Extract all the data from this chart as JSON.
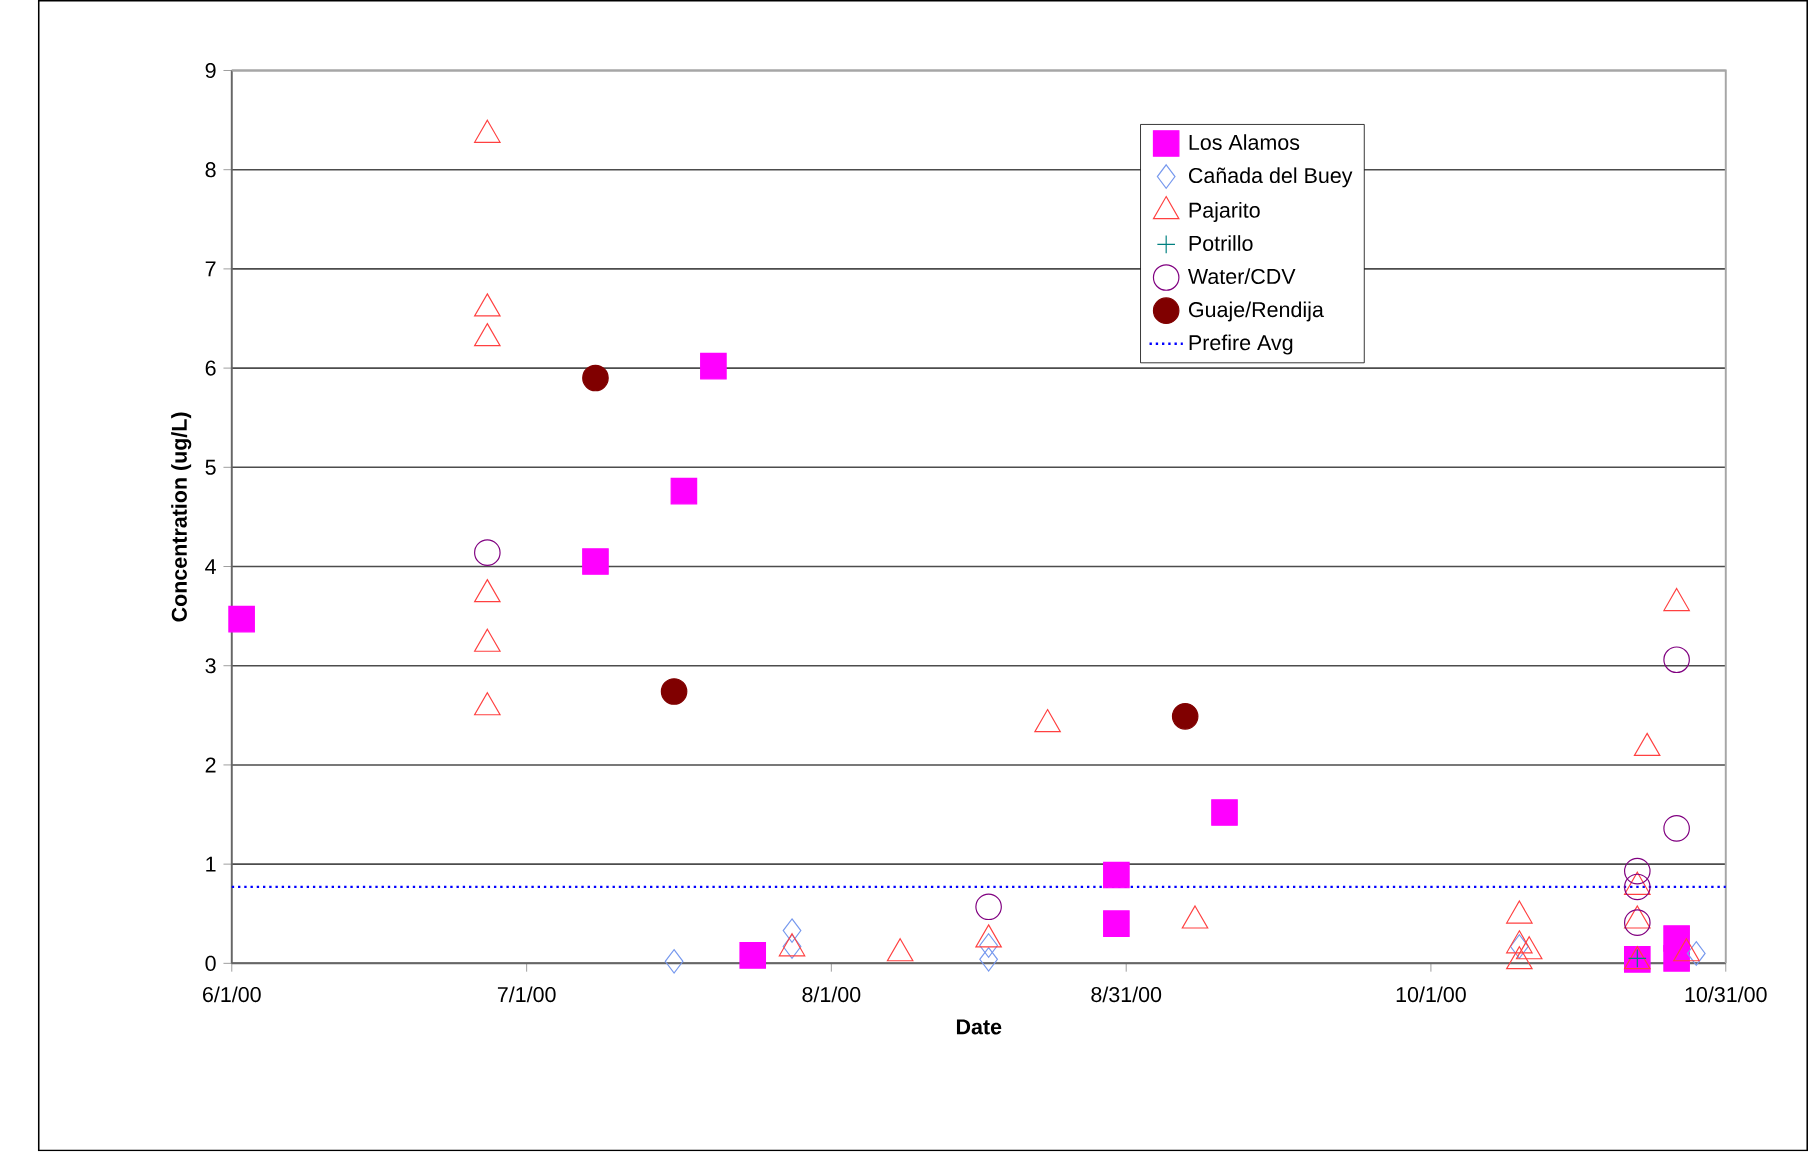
{
  "chart_data": {
    "type": "scatter",
    "xlabel": "Date",
    "ylabel": "Concentration (ug/L)",
    "xlim": [
      "2000-06-01",
      "2000-10-31"
    ],
    "xticks": [
      {
        "value": "2000-06-01",
        "label": "6/1/00"
      },
      {
        "value": "2000-07-01",
        "label": "7/1/00"
      },
      {
        "value": "2000-08-01",
        "label": "8/1/00"
      },
      {
        "value": "2000-08-31",
        "label": "8/31/00"
      },
      {
        "value": "2000-10-01",
        "label": "10/1/00"
      },
      {
        "value": "2000-10-31",
        "label": "10/31/00"
      }
    ],
    "ylim": [
      0,
      9
    ],
    "yticks": [
      0,
      1,
      2,
      3,
      4,
      5,
      6,
      7,
      8,
      9
    ],
    "grid": "y",
    "legend": "top right",
    "series": [
      {
        "name": "Los Alamos",
        "color": "#ff00ff",
        "marker": "square",
        "x": [
          "2000-06-02",
          "2000-07-08",
          "2000-07-17",
          "2000-07-20",
          "2000-07-24",
          "2000-08-30",
          "2000-08-30",
          "2000-09-10",
          "2000-10-22",
          "2000-10-26",
          "2000-10-26"
        ],
        "values": [
          3.47,
          4.05,
          4.76,
          6.02,
          0.08,
          0.89,
          0.4,
          1.52,
          0.04,
          0.25,
          0.05
        ]
      },
      {
        "name": "Cañada del Buey",
        "color": "#7799ee",
        "marker": "diamond",
        "x": [
          "2000-07-16",
          "2000-07-28",
          "2000-07-28",
          "2000-08-17",
          "2000-08-17",
          "2000-10-10",
          "2000-10-28"
        ],
        "values": [
          0.02,
          0.33,
          0.17,
          0.18,
          0.04,
          0.17,
          0.1
        ]
      },
      {
        "name": "Pajarito",
        "color": "#ff4040",
        "marker": "triangle",
        "x": [
          "2000-06-27",
          "2000-06-27",
          "2000-06-27",
          "2000-06-27",
          "2000-06-27",
          "2000-06-27",
          "2000-07-28",
          "2000-08-08",
          "2000-08-17",
          "2000-08-23",
          "2000-09-07",
          "2000-10-10",
          "2000-10-10",
          "2000-10-11",
          "2000-10-10",
          "2000-10-22",
          "2000-10-22",
          "2000-10-22",
          "2000-10-23",
          "2000-10-26",
          "2000-10-27"
        ],
        "values": [
          8.35,
          6.6,
          6.3,
          3.72,
          3.22,
          2.58,
          0.15,
          0.1,
          0.24,
          2.41,
          0.43,
          0.48,
          0.18,
          0.12,
          0.02,
          0.77,
          0.43,
          0.02,
          2.17,
          3.63,
          0.1
        ]
      },
      {
        "name": "Potrillo",
        "color": "#008080",
        "marker": "cross",
        "x": [
          "2000-10-22"
        ],
        "values": [
          0.05
        ]
      },
      {
        "name": "Water/CDV",
        "color": "#800080",
        "marker": "circle",
        "x": [
          "2000-06-27",
          "2000-08-17",
          "2000-10-22",
          "2000-10-22",
          "2000-10-22",
          "2000-10-26",
          "2000-10-26"
        ],
        "values": [
          4.14,
          0.57,
          0.93,
          0.77,
          0.41,
          3.06,
          1.36
        ]
      },
      {
        "name": "Guaje/Rendija",
        "color": "#800000",
        "marker": "circle",
        "x": [
          "2000-07-08",
          "2000-07-16",
          "2000-09-06"
        ],
        "values": [
          5.9,
          2.74,
          2.49
        ]
      },
      {
        "name": "Prefire Avg",
        "color": "#0000ff",
        "type": "line",
        "line_style": "dotted",
        "marker": "none",
        "x": [
          "2000-06-01",
          "2000-10-31"
        ],
        "values": [
          0.77,
          0.77
        ]
      }
    ]
  }
}
